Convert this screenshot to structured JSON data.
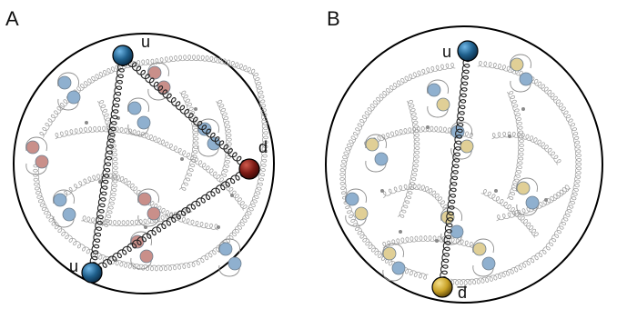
{
  "figure": {
    "panels": [
      {
        "id": "A",
        "label": "A",
        "quarks": [
          {
            "label": "u",
            "color": "blue"
          },
          {
            "label": "d",
            "color": "red"
          },
          {
            "label": "u",
            "color": "blue"
          }
        ],
        "sea_pair_colors": [
          "blue",
          "red"
        ]
      },
      {
        "id": "B",
        "label": "B",
        "quarks": [
          {
            "label": "u",
            "color": "blue"
          },
          {
            "label": "d̅",
            "color": "gold"
          }
        ],
        "sea_pair_colors": [
          "blue",
          "yellow"
        ]
      }
    ],
    "colors": {
      "blue_quark": "#1f5f8b",
      "red_quark": "#7a1a14",
      "gold_quark": "#c9a227",
      "sea_blue": "#8fb0cf",
      "sea_red": "#c98f8a",
      "sea_yellow": "#e0cf96",
      "gluon": "#9a9a9a",
      "string": "#222222",
      "boundary": "#000000"
    }
  }
}
